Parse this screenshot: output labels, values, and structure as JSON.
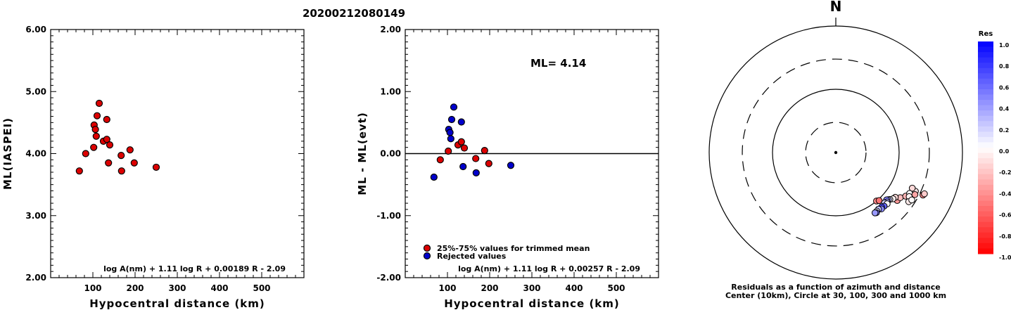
{
  "event_id": "20200212080149",
  "colors": {
    "accepted": "#dd0000",
    "rejected": "#0000cc",
    "axis": "#000000"
  },
  "chart_data": [
    {
      "type": "scatter",
      "name": "magnitude-vs-distance",
      "title": "",
      "xlabel": "Hypocentral distance (km)",
      "ylabel": "ML(IASPEI)",
      "xlim": [
        0,
        600
      ],
      "ylim": [
        2.0,
        6.0
      ],
      "xticks": [
        100,
        200,
        300,
        400,
        500
      ],
      "xtick_labels": [
        "100",
        "200",
        "300",
        "400",
        "500"
      ],
      "yticks": [
        2,
        3,
        4,
        5,
        6
      ],
      "ytick_labels": [
        "2.00",
        "3.00",
        "4.00",
        "5.00",
        "6.00"
      ],
      "annotation": "log A(nm) + 1.11 log R + 0.00189 R - 2.09",
      "points": [
        {
          "x": 68,
          "y": 3.72,
          "cls": "accepted"
        },
        {
          "x": 83,
          "y": 4.0,
          "cls": "accepted"
        },
        {
          "x": 102,
          "y": 4.1,
          "cls": "accepted"
        },
        {
          "x": 103,
          "y": 4.46,
          "cls": "accepted"
        },
        {
          "x": 106,
          "y": 4.39,
          "cls": "accepted"
        },
        {
          "x": 108,
          "y": 4.28,
          "cls": "accepted"
        },
        {
          "x": 110,
          "y": 4.61,
          "cls": "accepted"
        },
        {
          "x": 115,
          "y": 4.81,
          "cls": "accepted"
        },
        {
          "x": 125,
          "y": 4.2,
          "cls": "accepted"
        },
        {
          "x": 133,
          "y": 4.55,
          "cls": "accepted"
        },
        {
          "x": 133,
          "y": 4.23,
          "cls": "accepted"
        },
        {
          "x": 137,
          "y": 3.85,
          "cls": "accepted"
        },
        {
          "x": 140,
          "y": 4.14,
          "cls": "accepted"
        },
        {
          "x": 167,
          "y": 3.97,
          "cls": "accepted"
        },
        {
          "x": 168,
          "y": 3.72,
          "cls": "accepted"
        },
        {
          "x": 188,
          "y": 4.06,
          "cls": "accepted"
        },
        {
          "x": 198,
          "y": 3.85,
          "cls": "accepted"
        },
        {
          "x": 250,
          "y": 3.78,
          "cls": "accepted"
        }
      ]
    },
    {
      "type": "scatter",
      "name": "residual-vs-distance",
      "title": "",
      "xlabel": "Hypocentral distance (km)",
      "ylabel": "ML - ML(evt)",
      "xlim": [
        0,
        600
      ],
      "ylim": [
        -2.0,
        2.0
      ],
      "xticks": [
        100,
        200,
        300,
        400,
        500
      ],
      "xtick_labels": [
        "100",
        "200",
        "300",
        "400",
        "500"
      ],
      "yticks": [
        -2,
        -1,
        0,
        1,
        2
      ],
      "ytick_labels": [
        "-2.00",
        "-1.00",
        "0.00",
        "1.00",
        "2.00"
      ],
      "zero_line": true,
      "ml_text": "ML= 4.14",
      "legend": [
        {
          "label": "25%-75% values for trimmed mean",
          "cls": "accepted"
        },
        {
          "label": "Rejected values",
          "cls": "rejected"
        }
      ],
      "annotation": "log A(nm) + 1.11 log R + 0.00257 R - 2.09",
      "points": [
        {
          "x": 68,
          "y": -0.38,
          "cls": "rejected"
        },
        {
          "x": 83,
          "y": -0.1,
          "cls": "accepted"
        },
        {
          "x": 102,
          "y": 0.04,
          "cls": "accepted"
        },
        {
          "x": 103,
          "y": 0.39,
          "cls": "rejected"
        },
        {
          "x": 106,
          "y": 0.34,
          "cls": "rejected"
        },
        {
          "x": 108,
          "y": 0.24,
          "cls": "rejected"
        },
        {
          "x": 110,
          "y": 0.55,
          "cls": "rejected"
        },
        {
          "x": 115,
          "y": 0.75,
          "cls": "rejected"
        },
        {
          "x": 125,
          "y": 0.14,
          "cls": "accepted"
        },
        {
          "x": 133,
          "y": 0.51,
          "cls": "rejected"
        },
        {
          "x": 133,
          "y": 0.19,
          "cls": "accepted"
        },
        {
          "x": 137,
          "y": -0.21,
          "cls": "rejected"
        },
        {
          "x": 140,
          "y": 0.09,
          "cls": "accepted"
        },
        {
          "x": 167,
          "y": -0.08,
          "cls": "accepted"
        },
        {
          "x": 168,
          "y": -0.31,
          "cls": "rejected"
        },
        {
          "x": 188,
          "y": 0.05,
          "cls": "accepted"
        },
        {
          "x": 198,
          "y": -0.16,
          "cls": "accepted"
        },
        {
          "x": 250,
          "y": -0.19,
          "cls": "rejected"
        }
      ]
    },
    {
      "type": "scatter",
      "name": "residual-azimuth-plot",
      "north_label": "N",
      "caption_line1": "Residuals as a function of azimuth and distance",
      "caption_line2": "Center (10km), Circle at 30, 100, 300 and 1000 km",
      "rings_km": [
        30,
        100,
        300,
        1000
      ],
      "ring_styles": [
        "dashed",
        "solid",
        "dashed",
        "solid"
      ],
      "colorbar": {
        "title": "Res",
        "min": -1.0,
        "max": 1.0,
        "tick_values": [
          1.0,
          0.8,
          0.6,
          0.4,
          0.2,
          0.0,
          -0.2,
          -0.4,
          -0.6,
          -0.8,
          -1.0
        ],
        "tick_labels": [
          "1.0",
          "0.8",
          "0.6",
          "0.4",
          "0.2",
          "0.0",
          "-0.2",
          "-0.4",
          "-0.6",
          "-0.8",
          "-1.0"
        ]
      },
      "points": [
        {
          "azimuth": 140,
          "distance_km": 100,
          "residual": -0.45
        },
        {
          "azimuth": 138,
          "distance_km": 105,
          "residual": -0.55
        },
        {
          "azimuth": 128,
          "distance_km": 170,
          "residual": -0.4
        },
        {
          "azimuth": 125,
          "distance_km": 175,
          "residual": -0.25
        },
        {
          "azimuth": 127,
          "distance_km": 150,
          "residual": -0.15
        },
        {
          "azimuth": 129,
          "distance_km": 145,
          "residual": -0.05
        },
        {
          "azimuth": 131,
          "distance_km": 135,
          "residual": 0.05
        },
        {
          "azimuth": 132,
          "distance_km": 130,
          "residual": 0.3
        },
        {
          "azimuth": 133,
          "distance_km": 125,
          "residual": 0.5
        },
        {
          "azimuth": 134,
          "distance_km": 133,
          "residual": 0.35
        },
        {
          "azimuth": 136,
          "distance_km": 128,
          "residual": 0.2
        },
        {
          "azimuth": 135,
          "distance_km": 140,
          "residual": 0.0
        },
        {
          "azimuth": 138,
          "distance_km": 138,
          "residual": 0.6
        },
        {
          "azimuth": 140,
          "distance_km": 133,
          "residual": 0.7
        },
        {
          "azimuth": 141,
          "distance_km": 140,
          "residual": 0.45
        },
        {
          "azimuth": 143,
          "distance_km": 132,
          "residual": 0.25
        },
        {
          "azimuth": 145,
          "distance_km": 135,
          "residual": 0.1
        },
        {
          "azimuth": 146,
          "distance_km": 140,
          "residual": 0.55
        },
        {
          "azimuth": 147,
          "distance_km": 137,
          "residual": 0.4
        },
        {
          "azimuth": 122,
          "distance_km": 200,
          "residual": -0.3
        },
        {
          "azimuth": 119,
          "distance_km": 240,
          "residual": -0.2
        },
        {
          "azimuth": 116,
          "distance_km": 250,
          "residual": -0.1
        },
        {
          "azimuth": 115,
          "distance_km": 215,
          "residual": -0.15
        },
        {
          "azimuth": 119,
          "distance_km": 215,
          "residual": 0.0
        },
        {
          "azimuth": 121,
          "distance_km": 225,
          "residual": -0.05
        },
        {
          "azimuth": 118,
          "distance_km": 260,
          "residual": -0.35
        },
        {
          "azimuth": 124,
          "distance_km": 245,
          "residual": -0.08
        },
        {
          "azimuth": 122,
          "distance_km": 260,
          "residual": -0.02
        },
        {
          "azimuth": 116,
          "distance_km": 340,
          "residual": -0.45
        },
        {
          "azimuth": 115,
          "distance_km": 350,
          "residual": -0.2
        }
      ]
    }
  ]
}
